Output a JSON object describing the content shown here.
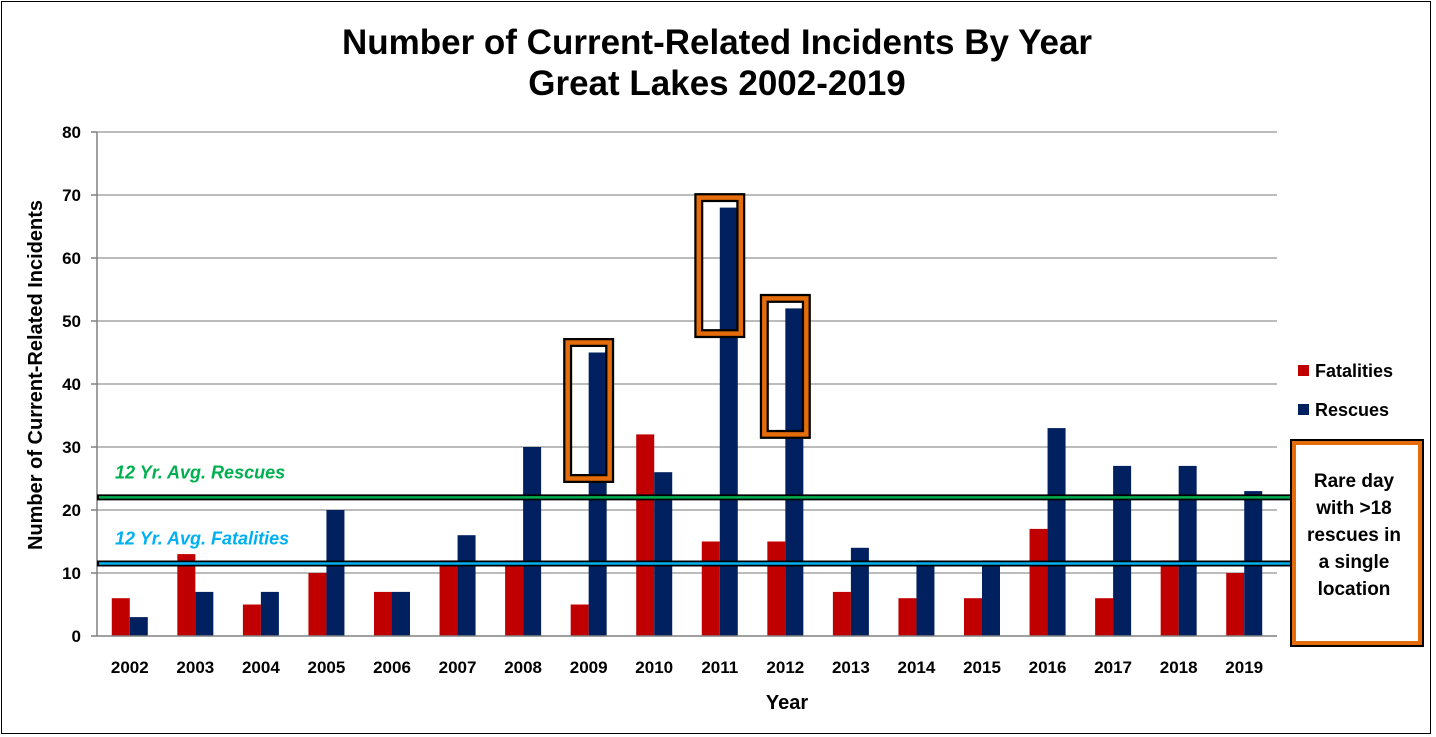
{
  "chart_data": {
    "type": "bar",
    "title": "Number of Current-Related Incidents By Year",
    "subtitle": "Great Lakes 2002-2019",
    "xlabel": "Year",
    "ylabel": "Number of Current-Related Incidents",
    "ylim": [
      0,
      80
    ],
    "yticks": [
      0,
      10,
      20,
      30,
      40,
      50,
      60,
      70,
      80
    ],
    "grid": true,
    "legend_position": "right",
    "categories": [
      "2002",
      "2003",
      "2004",
      "2005",
      "2006",
      "2007",
      "2008",
      "2009",
      "2010",
      "2011",
      "2012",
      "2013",
      "2014",
      "2015",
      "2016",
      "2017",
      "2018",
      "2019"
    ],
    "series": [
      {
        "name": "Fatalities",
        "color": "#c00000",
        "values": [
          6,
          13,
          5,
          10,
          7,
          12,
          12,
          5,
          32,
          15,
          15,
          7,
          6,
          6,
          17,
          6,
          12,
          10
        ]
      },
      {
        "name": "Rescues",
        "color": "#002060",
        "values": [
          3,
          7,
          7,
          20,
          7,
          16,
          30,
          45,
          26,
          68,
          52,
          14,
          12,
          12,
          33,
          27,
          27,
          23
        ]
      }
    ],
    "reference_lines": [
      {
        "label": "12 Yr. Avg. Rescues",
        "value": 22,
        "color": "#00b050"
      },
      {
        "label": "12 Yr. Avg. Fatalities",
        "value": 11.5,
        "color": "#00b0f0"
      }
    ],
    "highlighted_years": [
      "2009",
      "2011",
      "2012"
    ],
    "highlight_color": "#e46c0a",
    "note": {
      "lines": [
        "Rare day",
        "with >18",
        "rescues in",
        "a single",
        "location"
      ]
    }
  }
}
